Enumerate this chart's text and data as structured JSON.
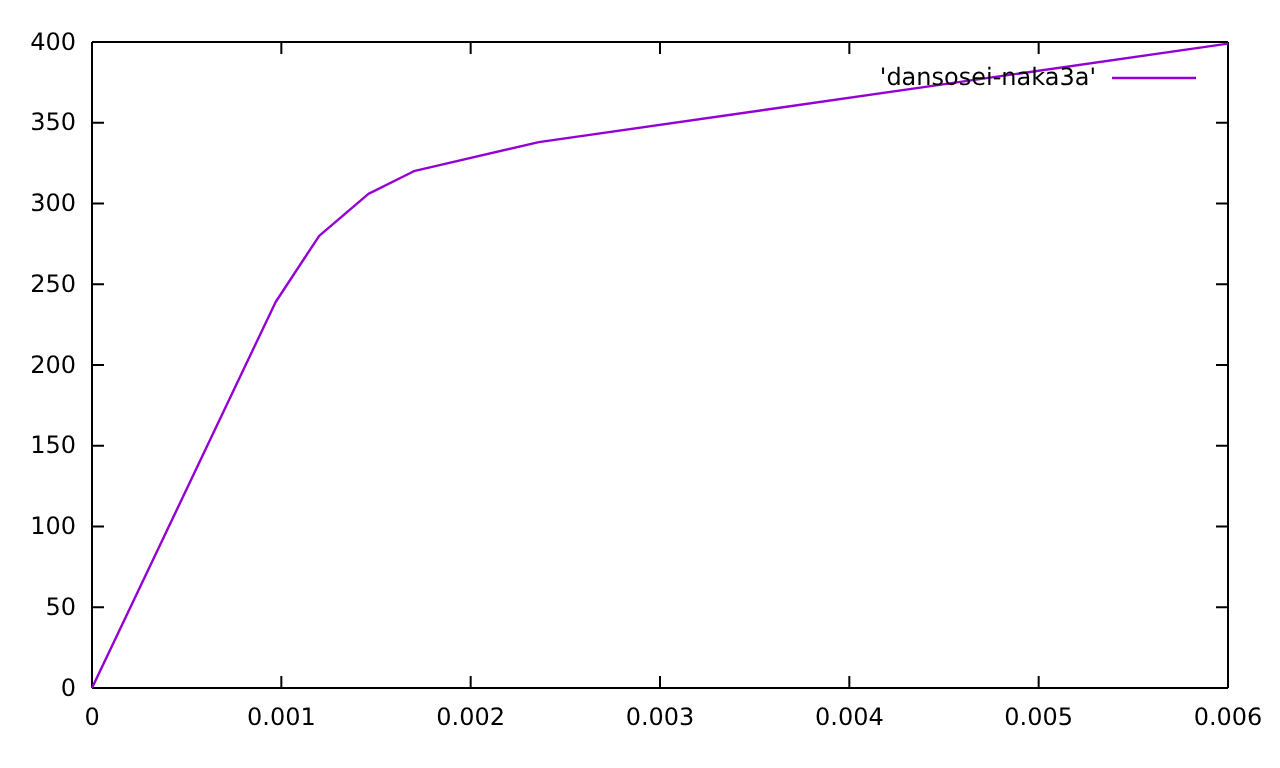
{
  "chart_data": {
    "type": "line",
    "x": [
      0,
      0.00097,
      0.0012,
      0.00146,
      0.0017,
      0.00236,
      0.006
    ],
    "series": [
      {
        "name": "'dansosei-naka3a'",
        "color": "#9400d3",
        "values": [
          0,
          239,
          280,
          306,
          320,
          338,
          399
        ]
      }
    ],
    "xlim": [
      0,
      0.006
    ],
    "xticks": [
      0,
      0.001,
      0.002,
      0.003,
      0.004,
      0.005,
      0.006
    ],
    "ylim": [
      0,
      400
    ],
    "yticks": [
      0,
      50,
      100,
      150,
      200,
      250,
      300,
      350,
      400
    ],
    "legend": "top right",
    "grid": false,
    "marker": "none",
    "line_style": "solid"
  }
}
